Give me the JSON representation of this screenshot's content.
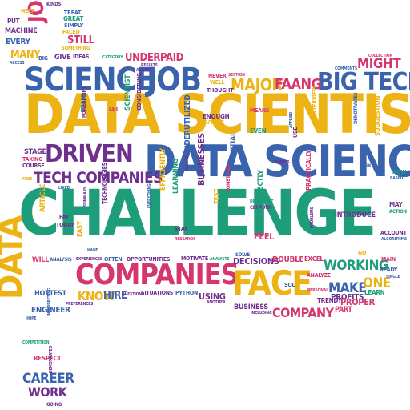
{
  "palette": {
    "yellow": "#EDB214",
    "blue": "#3A63AE",
    "green": "#1E9D7A",
    "purple": "#6E2F8F",
    "pink": "#D5366F"
  },
  "words": [
    {
      "text": "CHALLENGE",
      "color": "green"
    },
    {
      "text": "DATA SCIENTIST",
      "color": "yellow"
    },
    {
      "text": "DATA SCIENCE",
      "color": "blue"
    },
    {
      "text": "SCIENCE",
      "color": "blue"
    },
    {
      "text": "JOB",
      "color": "blue"
    },
    {
      "text": "BIG TECH",
      "color": "blue"
    },
    {
      "text": "MAJOR",
      "color": "yellow"
    },
    {
      "text": "FAANG",
      "color": "pink"
    },
    {
      "text": "MIGHT",
      "color": "pink"
    },
    {
      "text": "DRIVEN",
      "color": "purple"
    },
    {
      "text": "TECH COMPANIES",
      "color": "purple"
    },
    {
      "text": "COMPANIES",
      "color": "pink"
    },
    {
      "text": "FACE",
      "color": "yellow"
    },
    {
      "text": "DATA",
      "color": "yellow"
    },
    {
      "text": "JOB",
      "color": "pink"
    },
    {
      "text": "UNDERPAID",
      "color": "pink"
    },
    {
      "text": "WORKING",
      "color": "green"
    },
    {
      "text": "MAKE",
      "color": "blue"
    },
    {
      "text": "ONE",
      "color": "yellow"
    },
    {
      "text": "COMPANY",
      "color": "pink"
    },
    {
      "text": "KNOW",
      "color": "yellow"
    },
    {
      "text": "HIRE",
      "color": "blue"
    },
    {
      "text": "CAREER",
      "color": "blue"
    },
    {
      "text": "WORK",
      "color": "purple"
    },
    {
      "text": "STILL",
      "color": "pink"
    },
    {
      "text": "MANY",
      "color": "yellow"
    },
    {
      "text": "MACHINE",
      "color": "purple"
    },
    {
      "text": "EVERY",
      "color": "blue"
    },
    {
      "text": "PUT",
      "color": "purple"
    },
    {
      "text": "HELP",
      "color": "yellow"
    },
    {
      "text": "TREAT",
      "color": "blue"
    },
    {
      "text": "GREAT",
      "color": "green"
    },
    {
      "text": "SIMPLY",
      "color": "blue"
    },
    {
      "text": "FACED",
      "color": "yellow"
    },
    {
      "text": "KINDS",
      "color": "purple"
    },
    {
      "text": "SOMETHING",
      "color": "yellow"
    },
    {
      "text": "IDEAS",
      "color": "purple"
    },
    {
      "text": "GIVE",
      "color": "purple"
    },
    {
      "text": "BIG",
      "color": "blue"
    },
    {
      "text": "ACCESS",
      "color": "blue"
    },
    {
      "text": "CATEGORY",
      "color": "green"
    },
    {
      "text": "RESULTS",
      "color": "purple"
    },
    {
      "text": "ALWAYS",
      "color": "purple"
    },
    {
      "text": "COLLECTION",
      "color": "pink"
    },
    {
      "text": "COMMENTS",
      "color": "blue"
    },
    {
      "text": "NEVER",
      "color": "pink"
    },
    {
      "text": "WELL",
      "color": "yellow"
    },
    {
      "text": "THOUGHT",
      "color": "purple"
    },
    {
      "text": "SECTION",
      "color": "pink"
    },
    {
      "text": "LET",
      "color": "pink"
    },
    {
      "text": "TEAM",
      "color": "green"
    },
    {
      "text": "POWERPOINT",
      "color": "purple"
    },
    {
      "text": "SCIENTIST",
      "color": "green"
    },
    {
      "text": "CONSIDERING",
      "color": "purple"
    },
    {
      "text": "ENOUGH",
      "color": "purple"
    },
    {
      "text": "FUTURE",
      "color": "yellow"
    },
    {
      "text": "MEANS",
      "color": "pink"
    },
    {
      "text": "EVEN",
      "color": "green"
    },
    {
      "text": "APPLIED",
      "color": "blue"
    },
    {
      "text": "INTERVIEW",
      "color": "yellow"
    },
    {
      "text": "DENOTIVATES",
      "color": "blue"
    },
    {
      "text": "SUGGESTION",
      "color": "yellow"
    },
    {
      "text": "STAGE",
      "color": "purple"
    },
    {
      "text": "TAKING",
      "color": "pink"
    },
    {
      "text": "COURSE",
      "color": "purple"
    },
    {
      "text": "FREE",
      "color": "yellow"
    },
    {
      "text": "LIKED",
      "color": "blue"
    },
    {
      "text": "USE",
      "color": "purple"
    },
    {
      "text": "INITIAL",
      "color": "blue"
    },
    {
      "text": "VALUABLE",
      "color": "purple"
    },
    {
      "text": "WANTS",
      "color": "purple"
    },
    {
      "text": "ASK",
      "color": "blue"
    },
    {
      "text": "NOW",
      "color": "green"
    },
    {
      "text": "BASED",
      "color": "blue"
    },
    {
      "text": "ARTICLE",
      "color": "yellow"
    },
    {
      "text": "SUMMARY",
      "color": "purple"
    },
    {
      "text": "PAY",
      "color": "purple"
    },
    {
      "text": "TODAY",
      "color": "purple"
    },
    {
      "text": "TECHNOLOGIES",
      "color": "purple"
    },
    {
      "text": "EFFICIENTLY",
      "color": "yellow"
    },
    {
      "text": "LEARNING",
      "color": "green"
    },
    {
      "text": "UNDERUTILIZED",
      "color": "blue"
    },
    {
      "text": "EVERYTHING",
      "color": "blue"
    },
    {
      "text": "STAY",
      "color": "purple"
    },
    {
      "text": "RESEARCH",
      "color": "pink"
    },
    {
      "text": "BUSINESSES",
      "color": "purple"
    },
    {
      "text": "TEST",
      "color": "yellow"
    },
    {
      "text": "SOMETIMES",
      "color": "pink"
    },
    {
      "text": "DEPENDENT",
      "color": "green"
    },
    {
      "text": "CENTURY",
      "color": "purple"
    },
    {
      "text": "CORRECTLY",
      "color": "green"
    },
    {
      "text": "PRACTICALLY",
      "color": "pink"
    },
    {
      "text": "INTRODUCE",
      "color": "purple"
    },
    {
      "text": "MAY",
      "color": "purple"
    },
    {
      "text": "ACTION",
      "color": "green"
    },
    {
      "text": "ACCOUNT",
      "color": "purple"
    },
    {
      "text": "ALGORITHMS",
      "color": "blue"
    },
    {
      "text": "FEEL",
      "color": "pink"
    },
    {
      "text": "PROBLEMS",
      "color": "purple"
    },
    {
      "text": "EASY",
      "color": "yellow"
    },
    {
      "text": "HAND",
      "color": "blue"
    },
    {
      "text": "WILL",
      "color": "pink"
    },
    {
      "text": "ANALYSIS",
      "color": "blue"
    },
    {
      "text": "EXPERIENCES",
      "color": "purple"
    },
    {
      "text": "OFTEN",
      "color": "blue"
    },
    {
      "text": "OPPORTUNITIES",
      "color": "purple"
    },
    {
      "text": "MOTIVATE",
      "color": "purple"
    },
    {
      "text": "ANALYSTS",
      "color": "green"
    },
    {
      "text": "SOLVE",
      "color": "blue"
    },
    {
      "text": "DECISIONS",
      "color": "purple"
    },
    {
      "text": "DOUBLE",
      "color": "pink"
    },
    {
      "text": "EXCEL",
      "color": "pink"
    },
    {
      "text": "GO",
      "color": "yellow"
    },
    {
      "text": "MAIN",
      "color": "pink"
    },
    {
      "text": "READY",
      "color": "blue"
    },
    {
      "text": "SINGLE",
      "color": "blue"
    },
    {
      "text": "SQL",
      "color": "blue"
    },
    {
      "text": "ANALYZE",
      "color": "pink"
    },
    {
      "text": "PROFITS",
      "color": "purple"
    },
    {
      "text": "PROPER",
      "color": "pink"
    },
    {
      "text": "LEARN",
      "color": "green"
    },
    {
      "text": "PERSONAL",
      "color": "pink"
    },
    {
      "text": "TRENDY",
      "color": "purple"
    },
    {
      "text": "PART",
      "color": "pink"
    },
    {
      "text": "HOTTEST",
      "color": "blue"
    },
    {
      "text": "PREFERENCES",
      "color": "purple"
    },
    {
      "text": "QUESTIONS",
      "color": "purple"
    },
    {
      "text": "SITUATIONS",
      "color": "purple"
    },
    {
      "text": "PYTHON",
      "color": "blue"
    },
    {
      "text": "USING",
      "color": "purple"
    },
    {
      "text": "ANOTHER",
      "color": "purple"
    },
    {
      "text": "BUSINESS",
      "color": "purple"
    },
    {
      "text": "INCLUDING",
      "color": "purple"
    },
    {
      "text": "ENGINEER",
      "color": "blue"
    },
    {
      "text": "HOPE",
      "color": "blue"
    },
    {
      "text": "INTERPRETING",
      "color": "blue"
    },
    {
      "text": "COMPETITION",
      "color": "green"
    },
    {
      "text": "RESPECT",
      "color": "pink"
    },
    {
      "text": "DEMOTIVATED",
      "color": "purple"
    },
    {
      "text": "GOING",
      "color": "purple"
    }
  ]
}
